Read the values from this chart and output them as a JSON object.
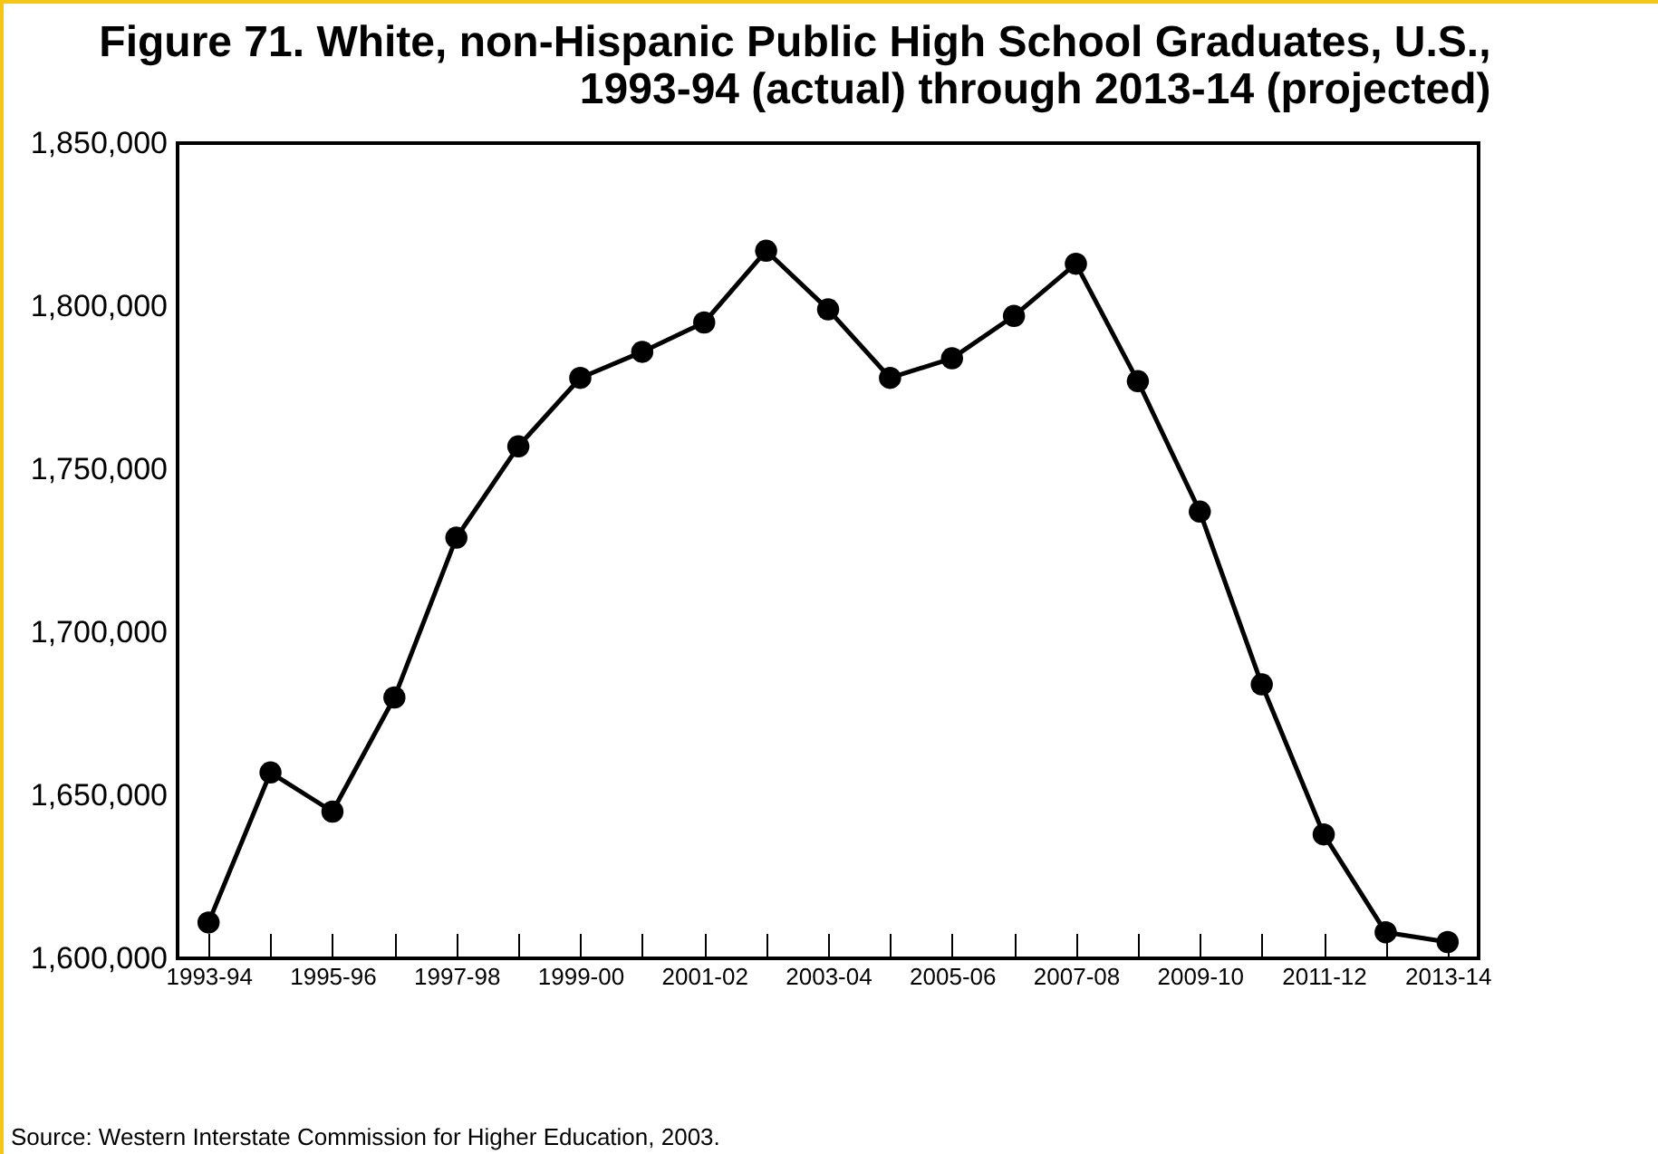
{
  "chart_data": {
    "type": "line",
    "title": [
      "Figure 71. White, non-Hispanic Public High School Graduates, U.S.,",
      "1993-94 (actual) through 2013-14 (projected)"
    ],
    "categories": [
      "1993-94",
      null,
      "1995-96",
      null,
      "1997-98",
      null,
      "1999-00",
      null,
      "2001-02",
      null,
      "2003-04",
      null,
      "2005-06",
      null,
      "2007-08",
      null,
      "2009-10",
      null,
      "2011-12",
      null,
      "2013-14"
    ],
    "series": [
      {
        "color": "#000000",
        "values": [
          1611000,
          1657000,
          1645000,
          1680000,
          1729000,
          1757000,
          1778000,
          1786000,
          1795000,
          1817000,
          1799000,
          1778000,
          1784000,
          1797000,
          1813000,
          1777000,
          1737000,
          1684000,
          1638000,
          1608000,
          1605000
        ]
      }
    ],
    "ylim": [
      1600000,
      1850000
    ],
    "yticks": [
      {
        "value": 1600000,
        "label": "1,600,000"
      },
      {
        "value": 1650000,
        "label": "1,650,000"
      },
      {
        "value": 1700000,
        "label": "1,700,000"
      },
      {
        "value": 1750000,
        "label": "1,750,000"
      },
      {
        "value": 1800000,
        "label": "1,800,000"
      },
      {
        "value": 1850000,
        "label": "1,850,000"
      }
    ],
    "marker": "circle",
    "line_style": "solid",
    "grid": false,
    "legend": false,
    "annotations": [
      "Source: Western Interstate Commission for Higher Education, 2003."
    ]
  }
}
